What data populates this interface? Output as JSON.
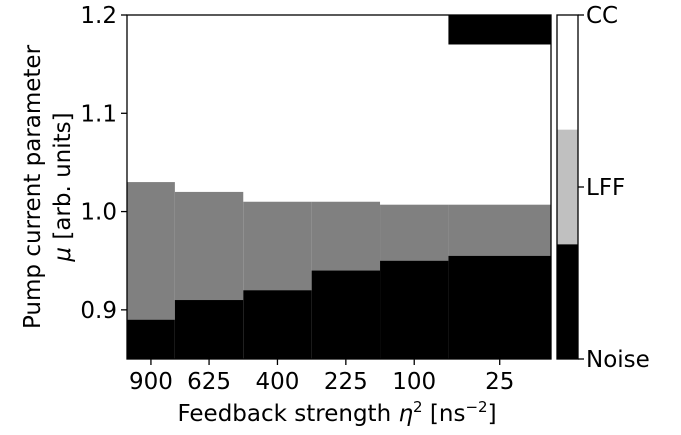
{
  "chart_data": {
    "type": "heatmap",
    "xlabel": "Feedback strength η² [ns⁻²]",
    "xlabel_parts": {
      "prefix": "Feedback strength ",
      "symbol": "η",
      "sup": "2",
      "bracket_open": " [ns",
      "unit_sup": "−2",
      "bracket_close": "]"
    },
    "ylabel_line1": "Pump current parameter",
    "ylabel_line2_parts": {
      "symbol": "μ",
      "rest": " [arb. units]"
    },
    "x_tick_labels": [
      "900",
      "625",
      "400",
      "225",
      "100",
      "25"
    ],
    "x_column_boundaries_sqrt_eta2": [
      31,
      27.5,
      22.5,
      17.5,
      12.5,
      7.5,
      0
    ],
    "y_ticks": [
      0.9,
      1.0,
      1.1,
      1.2
    ],
    "y_tick_labels": [
      "0.9",
      "1.0",
      "1.1",
      "1.2"
    ],
    "ylim": [
      0.85,
      1.2
    ],
    "regimes": [
      "Noise",
      "LFF",
      "CC"
    ],
    "colorbar_labels": [
      "CC",
      "LFF",
      "Noise"
    ],
    "colors": {
      "Noise": "#000000",
      "LFF": "#808080",
      "CC": "#ffffff",
      "colorbar_lff": "#c0c0c0"
    },
    "columns": [
      {
        "noise_upper": 0.89,
        "lff_upper": 1.03
      },
      {
        "noise_upper": 0.91,
        "lff_upper": 1.02
      },
      {
        "noise_upper": 0.92,
        "lff_upper": 1.01
      },
      {
        "noise_upper": 0.94,
        "lff_upper": 1.01
      },
      {
        "noise_upper": 0.95,
        "lff_upper": 1.007
      },
      {
        "noise_upper": 0.955,
        "lff_upper": 1.007
      }
    ],
    "extra_noise_block": {
      "x_from_sqrt_eta2": 7.5,
      "x_to_sqrt_eta2": 0,
      "y_from": 1.17,
      "y_to": 1.2
    }
  }
}
